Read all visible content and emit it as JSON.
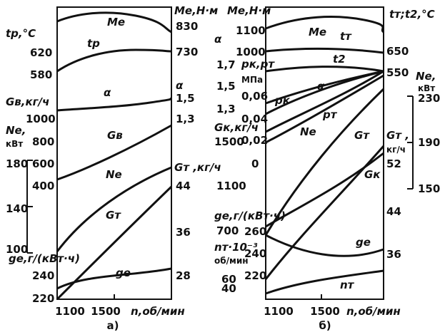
{
  "chart_data": [
    {
      "panel": "а)",
      "type": "line",
      "xlabel": "n,об/мин",
      "x_ticks": [
        "1100",
        "1500"
      ],
      "series": [
        {
          "name": "Me",
          "points": [
            [
              1100,
              795
            ],
            [
              1250,
              813
            ],
            [
              1400,
              813
            ],
            [
              1550,
              806
            ],
            [
              1700,
              790
            ],
            [
              1850,
              768
            ]
          ]
        },
        {
          "name": "tp",
          "points": [
            [
              1100,
              592
            ],
            [
              1250,
              617
            ],
            [
              1400,
              627
            ],
            [
              1550,
              630
            ],
            [
              1700,
              628
            ],
            [
              1850,
              627
            ]
          ]
        },
        {
          "name": "α",
          "points": [
            [
              1100,
              1.38
            ],
            [
              1300,
              1.4
            ],
            [
              1500,
              1.42
            ],
            [
              1700,
              1.45
            ],
            [
              1850,
              1.48
            ]
          ]
        },
        {
          "name": "Gв",
          "points": [
            [
              1100,
              880
            ],
            [
              1300,
              955
            ],
            [
              1500,
              1040
            ],
            [
              1700,
              1120
            ],
            [
              1850,
              1180
            ]
          ]
        },
        {
          "name": "Ne",
          "points": [
            [
              1100,
              98
            ],
            [
              1250,
              125
            ],
            [
              1400,
              145
            ],
            [
              1550,
              160
            ],
            [
              1700,
              172
            ],
            [
              1850,
              178
            ]
          ]
        },
        {
          "name": "Gт",
          "points": [
            [
              1100,
              23
            ],
            [
              1300,
              29.5
            ],
            [
              1500,
              35.5
            ],
            [
              1700,
              41
            ],
            [
              1850,
              45
            ]
          ]
        },
        {
          "name": "ge",
          "points": [
            [
              1100,
              234
            ],
            [
              1300,
              245
            ],
            [
              1500,
              247
            ],
            [
              1700,
              244
            ],
            [
              1850,
              246
            ]
          ]
        }
      ],
      "axes_labels": {
        "tp": "tр,°С",
        "Me": "Mе,Н·м",
        "alpha": "α",
        "Gv": "Gв,кг/ч",
        "Ne": "Nе,",
        "Ne_unit": "кВт",
        "Gt": "Gт ,кг/ч",
        "ge": "gе,г/(кВт·ч)"
      }
    },
    {
      "panel": "б)",
      "type": "line",
      "xlabel": "n,об/мин",
      "x_ticks": [
        "1100",
        "1500"
      ],
      "series": [
        {
          "name": "Me",
          "points": [
            [
              1100,
              1070
            ],
            [
              1300,
              1100
            ],
            [
              1500,
              1105
            ],
            [
              1700,
              1090
            ],
            [
              1850,
              1075
            ]
          ]
        },
        {
          "name": "tт",
          "points": [
            [
              1100,
              660
            ],
            [
              1300,
              662
            ],
            [
              1500,
              662
            ],
            [
              1700,
              660
            ],
            [
              1850,
              655
            ]
          ]
        },
        {
          "name": "t2",
          "points": [
            [
              1100,
              555
            ],
            [
              1300,
              565
            ],
            [
              1500,
              570
            ],
            [
              1700,
              565
            ],
            [
              1850,
              555
            ]
          ]
        },
        {
          "name": "α",
          "points": [
            [
              1100,
              1.48
            ],
            [
              1300,
              1.53
            ],
            [
              1500,
              1.56
            ],
            [
              1700,
              1.58
            ],
            [
              1850,
              1.62
            ]
          ]
        },
        {
          "name": "pк",
          "points": [
            [
              1100,
              0.047
            ],
            [
              1300,
              0.058
            ],
            [
              1500,
              0.066
            ],
            [
              1700,
              0.07
            ],
            [
              1850,
              0.074
            ]
          ]
        },
        {
          "name": "pт",
          "points": [
            [
              1100,
              0.032
            ],
            [
              1300,
              0.048
            ],
            [
              1500,
              0.057
            ],
            [
              1700,
              0.065
            ],
            [
              1850,
              0.074
            ]
          ]
        },
        {
          "name": "Ne",
          "points": [
            [
              1100,
              150
            ],
            [
              1300,
              176
            ],
            [
              1500,
              197
            ],
            [
              1700,
              215
            ],
            [
              1850,
              232
            ]
          ]
        },
        {
          "name": "Gт",
          "points": [
            [
              1100,
              28
            ],
            [
              1300,
              37
            ],
            [
              1500,
              44
            ],
            [
              1700,
              51
            ],
            [
              1850,
              57
            ]
          ]
        },
        {
          "name": "Gк",
          "points": [
            [
              1100,
              620
            ],
            [
              1300,
              830
            ],
            [
              1500,
              1020
            ],
            [
              1700,
              1200
            ],
            [
              1850,
              1330
            ]
          ]
        },
        {
          "name": "ge",
          "points": [
            [
              1100,
              258
            ],
            [
              1300,
              244
            ],
            [
              1500,
              233
            ],
            [
              1700,
              236
            ],
            [
              1850,
              244
            ]
          ]
        },
        {
          "name": "nт",
          "points": [
            [
              1100,
              35
            ],
            [
              1300,
              39
            ],
            [
              1500,
              41
            ],
            [
              1700,
              42
            ],
            [
              1850,
              43
            ]
          ]
        }
      ],
      "axes_labels": {
        "Me": "Mе,Н·м",
        "tt": "tт;t2,°С",
        "alpha": "α",
        "pk_pt": "pк,pт",
        "mpa": "МПа",
        "Ne": "Nе,",
        "Ne_unit": "кВт",
        "Gk": "Gк,кг/ч",
        "Gt": "Gт ,",
        "Gt_unit": "кг/ч",
        "ge": "gе,г/(кВт·ч)",
        "nt": "nт·10⁻³",
        "nt_unit": "об/мин"
      }
    }
  ],
  "ticks": {
    "a_left": [
      "620",
      "580",
      "1000",
      "800",
      "600",
      "400",
      "180",
      "140",
      "100",
      "240",
      "220"
    ],
    "a_right": [
      "830",
      "730",
      "1,5",
      "1,3",
      "44",
      "36",
      "28"
    ],
    "b_left": [
      "1100",
      "1000",
      "1,7",
      "1,5",
      "1,3",
      "0,06",
      "0,04",
      "0,02",
      "1500",
      "0",
      "1100",
      "700",
      "260",
      "240",
      "60",
      "40",
      "220"
    ],
    "b_right": [
      "650",
      "550",
      "230",
      "190",
      "150",
      "52",
      "44",
      "36"
    ]
  },
  "curve_labels": {
    "a": {
      "Me": "Mе",
      "tp": "tр",
      "alpha": "α",
      "Gv": "Gв",
      "Ne": "Nе",
      "Gt": "Gт",
      "ge": "gе"
    },
    "b": {
      "Me": "Mе",
      "tt": "tт",
      "t2": "t2",
      "alpha": "α",
      "pk": "pк",
      "pt": "pт",
      "Ne": "Nе",
      "Gt": "Gт",
      "Gk": "Gк",
      "ge": "gе",
      "nt": "nт"
    }
  }
}
